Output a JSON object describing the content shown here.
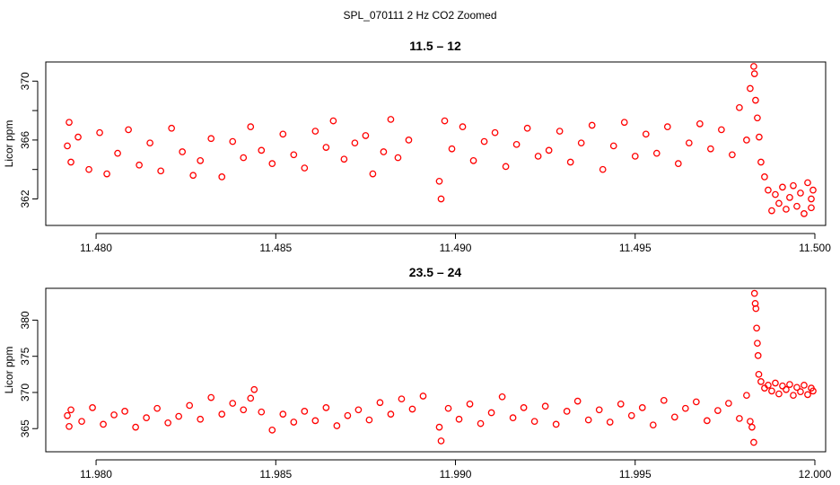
{
  "figure": {
    "suptitle": "SPL_070111  2 Hz CO2 Zoomed"
  },
  "colors": {
    "points": "#ff0000",
    "axes": "#000000"
  },
  "chart_data": [
    {
      "type": "scatter",
      "title": "11.5 – 12",
      "xlabel": "",
      "ylabel": "Licor ppm",
      "xlim": [
        11.4786,
        11.5003
      ],
      "ylim": [
        360.2,
        371.3
      ],
      "xticks": [
        11.48,
        11.485,
        11.49,
        11.495,
        11.5
      ],
      "xtick_labels": [
        "11.480",
        "11.485",
        "11.490",
        "11.495",
        "11.500"
      ],
      "yticks": [
        362,
        364,
        366,
        368,
        370
      ],
      "ytick_labels": [
        "362",
        "",
        "366",
        "",
        "370"
      ],
      "marker": "open-circle",
      "series": [
        {
          "values": [
            [
              11.4792,
              365.6
            ],
            [
              11.47925,
              367.2
            ],
            [
              11.4793,
              364.5
            ],
            [
              11.4795,
              366.2
            ],
            [
              11.4798,
              364.0
            ],
            [
              11.4801,
              366.5
            ],
            [
              11.4803,
              363.7
            ],
            [
              11.4806,
              365.1
            ],
            [
              11.4809,
              366.7
            ],
            [
              11.4812,
              364.3
            ],
            [
              11.4815,
              365.8
            ],
            [
              11.4818,
              363.9
            ],
            [
              11.4821,
              366.8
            ],
            [
              11.4824,
              365.2
            ],
            [
              11.4827,
              363.6
            ],
            [
              11.4829,
              364.6
            ],
            [
              11.4832,
              366.1
            ],
            [
              11.4835,
              363.5
            ],
            [
              11.4838,
              365.9
            ],
            [
              11.4841,
              364.8
            ],
            [
              11.4843,
              366.9
            ],
            [
              11.4846,
              365.3
            ],
            [
              11.4849,
              364.4
            ],
            [
              11.4852,
              366.4
            ],
            [
              11.4855,
              365.0
            ],
            [
              11.4858,
              364.1
            ],
            [
              11.4861,
              366.6
            ],
            [
              11.4864,
              365.5
            ],
            [
              11.4866,
              367.3
            ],
            [
              11.4869,
              364.7
            ],
            [
              11.4872,
              365.8
            ],
            [
              11.4875,
              366.3
            ],
            [
              11.4877,
              363.7
            ],
            [
              11.488,
              365.2
            ],
            [
              11.4882,
              367.4
            ],
            [
              11.4884,
              364.8
            ],
            [
              11.4887,
              366.0
            ],
            [
              11.48955,
              363.2
            ],
            [
              11.4896,
              362.0
            ],
            [
              11.4897,
              367.3
            ],
            [
              11.4899,
              365.4
            ],
            [
              11.4902,
              366.9
            ],
            [
              11.4905,
              364.6
            ],
            [
              11.4908,
              365.9
            ],
            [
              11.4911,
              366.5
            ],
            [
              11.4914,
              364.2
            ],
            [
              11.4917,
              365.7
            ],
            [
              11.492,
              366.8
            ],
            [
              11.4923,
              364.9
            ],
            [
              11.4926,
              365.3
            ],
            [
              11.4929,
              366.6
            ],
            [
              11.4932,
              364.5
            ],
            [
              11.4935,
              365.8
            ],
            [
              11.4938,
              367.0
            ],
            [
              11.4941,
              364.0
            ],
            [
              11.4944,
              365.6
            ],
            [
              11.4947,
              367.2
            ],
            [
              11.495,
              364.9
            ],
            [
              11.4953,
              366.4
            ],
            [
              11.4956,
              365.1
            ],
            [
              11.4959,
              366.9
            ],
            [
              11.4962,
              364.4
            ],
            [
              11.4965,
              365.8
            ],
            [
              11.4968,
              367.1
            ],
            [
              11.4971,
              365.4
            ],
            [
              11.4974,
              366.7
            ],
            [
              11.4977,
              365.0
            ],
            [
              11.4979,
              368.2
            ],
            [
              11.4981,
              366.0
            ],
            [
              11.4982,
              369.5
            ],
            [
              11.4983,
              371.0
            ],
            [
              11.49832,
              370.5
            ],
            [
              11.49835,
              368.7
            ],
            [
              11.4984,
              367.5
            ],
            [
              11.49845,
              366.2
            ],
            [
              11.4985,
              364.5
            ],
            [
              11.4986,
              363.5
            ],
            [
              11.4987,
              362.6
            ],
            [
              11.4988,
              361.2
            ],
            [
              11.4989,
              362.3
            ],
            [
              11.499,
              361.7
            ],
            [
              11.4991,
              362.8
            ],
            [
              11.4992,
              361.3
            ],
            [
              11.4993,
              362.1
            ],
            [
              11.4994,
              362.9
            ],
            [
              11.4995,
              361.5
            ],
            [
              11.4996,
              362.4
            ],
            [
              11.4997,
              361.0
            ],
            [
              11.4998,
              363.1
            ],
            [
              11.4999,
              362.0
            ],
            [
              11.4999,
              361.4
            ],
            [
              11.49995,
              362.6
            ]
          ]
        }
      ]
    },
    {
      "type": "scatter",
      "title": "23.5 – 24",
      "xlabel": "",
      "ylabel": "Licor ppm",
      "xlim": [
        11.9786,
        12.0003
      ],
      "ylim": [
        361.8,
        384.4
      ],
      "xticks": [
        11.98,
        11.985,
        11.99,
        11.995,
        12.0
      ],
      "xtick_labels": [
        "11.980",
        "11.985",
        "11.990",
        "11.995",
        "12.000"
      ],
      "yticks": [
        365,
        370,
        375,
        380
      ],
      "ytick_labels": [
        "365",
        "370",
        "375",
        "380"
      ],
      "marker": "open-circle",
      "series": [
        {
          "values": [
            [
              11.9792,
              366.8
            ],
            [
              11.97925,
              365.3
            ],
            [
              11.9793,
              367.6
            ],
            [
              11.9796,
              366.0
            ],
            [
              11.9799,
              367.9
            ],
            [
              11.9802,
              365.6
            ],
            [
              11.9805,
              366.9
            ],
            [
              11.9808,
              367.4
            ],
            [
              11.9811,
              365.2
            ],
            [
              11.9814,
              366.5
            ],
            [
              11.9817,
              367.8
            ],
            [
              11.982,
              365.8
            ],
            [
              11.9823,
              366.7
            ],
            [
              11.9826,
              368.2
            ],
            [
              11.9829,
              366.3
            ],
            [
              11.9832,
              369.3
            ],
            [
              11.9835,
              367.0
            ],
            [
              11.9838,
              368.5
            ],
            [
              11.9841,
              367.6
            ],
            [
              11.9843,
              369.2
            ],
            [
              11.9844,
              370.4
            ],
            [
              11.9846,
              367.3
            ],
            [
              11.9849,
              364.8
            ],
            [
              11.9852,
              367.0
            ],
            [
              11.9855,
              365.9
            ],
            [
              11.9858,
              367.4
            ],
            [
              11.9861,
              366.1
            ],
            [
              11.9864,
              367.9
            ],
            [
              11.9867,
              365.4
            ],
            [
              11.987,
              366.8
            ],
            [
              11.9873,
              367.6
            ],
            [
              11.9876,
              366.2
            ],
            [
              11.9879,
              368.6
            ],
            [
              11.9882,
              367.0
            ],
            [
              11.9885,
              369.1
            ],
            [
              11.9888,
              367.7
            ],
            [
              11.9891,
              369.5
            ],
            [
              11.98955,
              365.2
            ],
            [
              11.9896,
              363.3
            ],
            [
              11.9898,
              367.8
            ],
            [
              11.9901,
              366.3
            ],
            [
              11.9904,
              368.4
            ],
            [
              11.9907,
              365.7
            ],
            [
              11.991,
              367.2
            ],
            [
              11.9913,
              369.4
            ],
            [
              11.9916,
              366.5
            ],
            [
              11.9919,
              367.9
            ],
            [
              11.9922,
              366.0
            ],
            [
              11.9925,
              368.1
            ],
            [
              11.9928,
              365.6
            ],
            [
              11.9931,
              367.4
            ],
            [
              11.9934,
              368.8
            ],
            [
              11.9937,
              366.2
            ],
            [
              11.994,
              367.6
            ],
            [
              11.9943,
              365.9
            ],
            [
              11.9946,
              368.4
            ],
            [
              11.9949,
              366.8
            ],
            [
              11.9952,
              367.9
            ],
            [
              11.9955,
              365.5
            ],
            [
              11.9958,
              368.9
            ],
            [
              11.9961,
              366.6
            ],
            [
              11.9964,
              367.8
            ],
            [
              11.9967,
              368.7
            ],
            [
              11.997,
              366.1
            ],
            [
              11.9973,
              367.5
            ],
            [
              11.9976,
              368.5
            ],
            [
              11.9979,
              366.4
            ],
            [
              11.9981,
              369.6
            ],
            [
              11.9982,
              366.0
            ],
            [
              11.99825,
              365.2
            ],
            [
              11.9983,
              363.1
            ],
            [
              11.99832,
              383.7
            ],
            [
              11.99834,
              382.3
            ],
            [
              11.99836,
              381.6
            ],
            [
              11.99838,
              378.9
            ],
            [
              11.9984,
              376.8
            ],
            [
              11.99842,
              375.1
            ],
            [
              11.99844,
              372.5
            ],
            [
              11.9985,
              371.5
            ],
            [
              11.9986,
              370.6
            ],
            [
              11.9987,
              371.0
            ],
            [
              11.9988,
              370.2
            ],
            [
              11.9989,
              371.3
            ],
            [
              11.999,
              369.8
            ],
            [
              11.9991,
              370.9
            ],
            [
              11.9992,
              370.4
            ],
            [
              11.9993,
              371.1
            ],
            [
              11.9994,
              369.6
            ],
            [
              11.9995,
              370.7
            ],
            [
              11.9996,
              370.1
            ],
            [
              11.9997,
              371.0
            ],
            [
              11.9998,
              369.7
            ],
            [
              11.9999,
              370.6
            ],
            [
              11.99995,
              370.2
            ]
          ]
        }
      ]
    }
  ]
}
